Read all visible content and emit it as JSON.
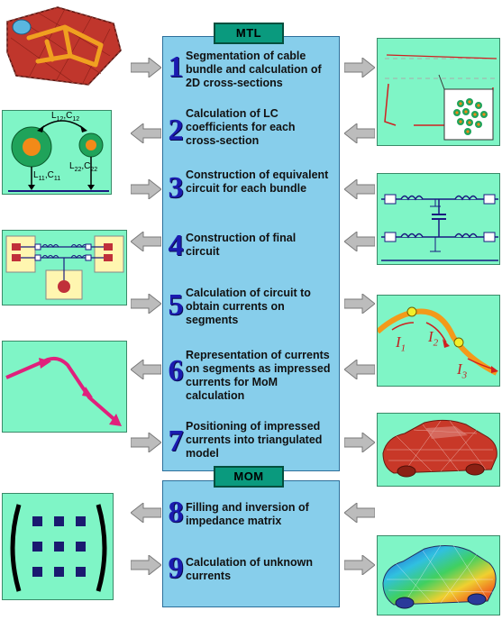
{
  "sections": {
    "mtl": "MTL",
    "mom": "MOM"
  },
  "steps": [
    {
      "num": "1",
      "text": "Segmentation of cable bundle and calculation of  2D cross-sections"
    },
    {
      "num": "2",
      "text": "Calculation of LC coefficients for each cross-section"
    },
    {
      "num": "3",
      "text": "Construction of equivalent circuit for each bundle"
    },
    {
      "num": "4",
      "text": "Construction of final circuit"
    },
    {
      "num": "5",
      "text": "Calculation of circuit to obtain currents on segments"
    },
    {
      "num": "6",
      "text": "Representation of currents on segments as impressed currents for MoM calculation"
    },
    {
      "num": "7",
      "text": "Positioning of impressed currents into triangulated model"
    },
    {
      "num": "8",
      "text": "Filling and inversion of impedance matrix"
    },
    {
      "num": "9",
      "text": "Calculation of unknown currents"
    }
  ],
  "lc_labels": {
    "l12": "L",
    "l12_sub": "12",
    "c12": "C",
    "c12_sub": "12",
    "l11": "L",
    "l11_sub": "11",
    "c11": "C",
    "c11_sub": "11",
    "l22": "L",
    "l22_sub": "22",
    "c22": "C",
    "c22_sub": "22"
  },
  "current_labels": {
    "i1": "I",
    "i1_sub": "1",
    "i2": "I",
    "i2_sub": "2",
    "i3": "I",
    "i3_sub": "3"
  },
  "colors": {
    "panel": "#7ff5c6",
    "center_box": "#87ceeb",
    "tag": "#0a9a7e",
    "number": "#1b1bb0",
    "arrow": "#b8b8b8"
  }
}
